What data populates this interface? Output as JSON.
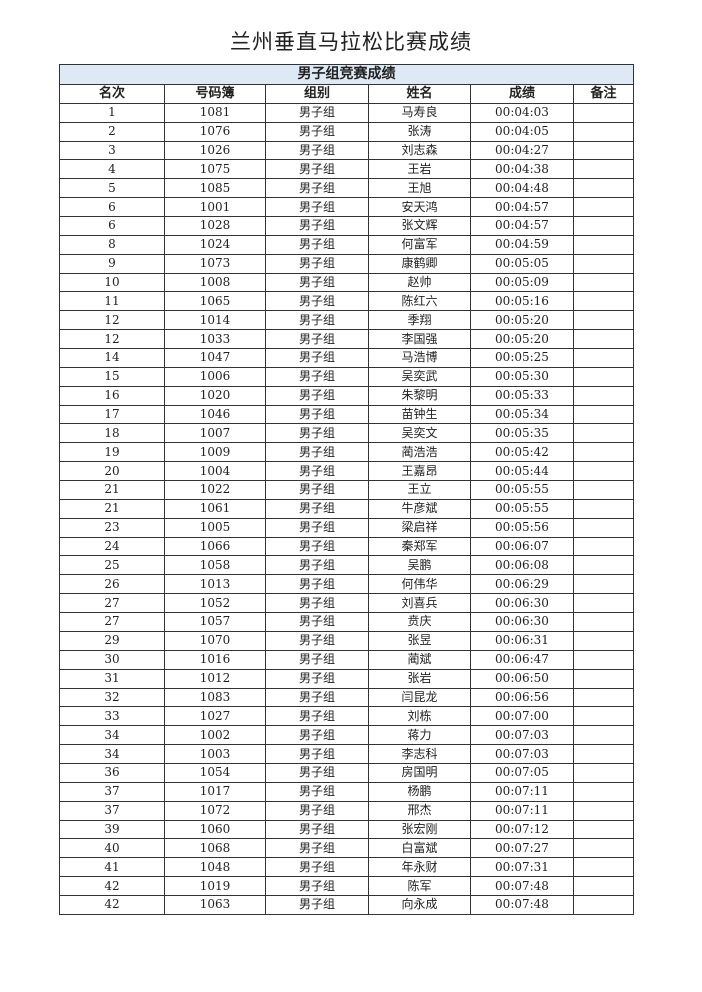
{
  "title": "兰州垂直马拉松比赛成绩",
  "section_title": "男子组竞赛成绩",
  "columns": [
    "名次",
    "号码簿",
    "组别",
    "姓名",
    "成绩",
    "备注"
  ],
  "rows": [
    [
      "1",
      "1081",
      "男子组",
      "马寿良",
      "00:04:03",
      ""
    ],
    [
      "2",
      "1076",
      "男子组",
      "张涛",
      "00:04:05",
      ""
    ],
    [
      "3",
      "1026",
      "男子组",
      "刘志森",
      "00:04:27",
      ""
    ],
    [
      "4",
      "1075",
      "男子组",
      "王岩",
      "00:04:38",
      ""
    ],
    [
      "5",
      "1085",
      "男子组",
      "王旭",
      "00:04:48",
      ""
    ],
    [
      "6",
      "1001",
      "男子组",
      "安天鸿",
      "00:04:57",
      ""
    ],
    [
      "6",
      "1028",
      "男子组",
      "张文辉",
      "00:04:57",
      ""
    ],
    [
      "8",
      "1024",
      "男子组",
      "何富军",
      "00:04:59",
      ""
    ],
    [
      "9",
      "1073",
      "男子组",
      "康鹤卿",
      "00:05:05",
      ""
    ],
    [
      "10",
      "1008",
      "男子组",
      "赵帅",
      "00:05:09",
      ""
    ],
    [
      "11",
      "1065",
      "男子组",
      "陈红六",
      "00:05:16",
      ""
    ],
    [
      "12",
      "1014",
      "男子组",
      "季翔",
      "00:05:20",
      ""
    ],
    [
      "12",
      "1033",
      "男子组",
      "李国强",
      "00:05:20",
      ""
    ],
    [
      "14",
      "1047",
      "男子组",
      "马浩博",
      "00:05:25",
      ""
    ],
    [
      "15",
      "1006",
      "男子组",
      "吴奕武",
      "00:05:30",
      ""
    ],
    [
      "16",
      "1020",
      "男子组",
      "朱黎明",
      "00:05:33",
      ""
    ],
    [
      "17",
      "1046",
      "男子组",
      "苗钟生",
      "00:05:34",
      ""
    ],
    [
      "18",
      "1007",
      "男子组",
      "吴奕文",
      "00:05:35",
      ""
    ],
    [
      "19",
      "1009",
      "男子组",
      "蔺浩浩",
      "00:05:42",
      ""
    ],
    [
      "20",
      "1004",
      "男子组",
      "王嘉昂",
      "00:05:44",
      ""
    ],
    [
      "21",
      "1022",
      "男子组",
      "王立",
      "00:05:55",
      ""
    ],
    [
      "21",
      "1061",
      "男子组",
      "牛彦斌",
      "00:05:55",
      ""
    ],
    [
      "23",
      "1005",
      "男子组",
      "梁启祥",
      "00:05:56",
      ""
    ],
    [
      "24",
      "1066",
      "男子组",
      "秦郑军",
      "00:06:07",
      ""
    ],
    [
      "25",
      "1058",
      "男子组",
      "吴鹏",
      "00:06:08",
      ""
    ],
    [
      "26",
      "1013",
      "男子组",
      "何伟华",
      "00:06:29",
      ""
    ],
    [
      "27",
      "1052",
      "男子组",
      "刘喜兵",
      "00:06:30",
      ""
    ],
    [
      "27",
      "1057",
      "男子组",
      "贲庆",
      "00:06:30",
      ""
    ],
    [
      "29",
      "1070",
      "男子组",
      "张昱",
      "00:06:31",
      ""
    ],
    [
      "30",
      "1016",
      "男子组",
      "蔺斌",
      "00:06:47",
      ""
    ],
    [
      "31",
      "1012",
      "男子组",
      "张岩",
      "00:06:50",
      ""
    ],
    [
      "32",
      "1083",
      "男子组",
      "闫昆龙",
      "00:06:56",
      ""
    ],
    [
      "33",
      "1027",
      "男子组",
      "刘栋",
      "00:07:00",
      ""
    ],
    [
      "34",
      "1002",
      "男子组",
      "蒋力",
      "00:07:03",
      ""
    ],
    [
      "34",
      "1003",
      "男子组",
      "李志科",
      "00:07:03",
      ""
    ],
    [
      "36",
      "1054",
      "男子组",
      "房国明",
      "00:07:05",
      ""
    ],
    [
      "37",
      "1017",
      "男子组",
      "杨鹏",
      "00:07:11",
      ""
    ],
    [
      "37",
      "1072",
      "男子组",
      "邢杰",
      "00:07:11",
      ""
    ],
    [
      "39",
      "1060",
      "男子组",
      "张宏刚",
      "00:07:12",
      ""
    ],
    [
      "40",
      "1068",
      "男子组",
      "白富斌",
      "00:07:27",
      ""
    ],
    [
      "41",
      "1048",
      "男子组",
      "年永财",
      "00:07:31",
      ""
    ],
    [
      "42",
      "1019",
      "男子组",
      "陈军",
      "00:07:48",
      ""
    ],
    [
      "42",
      "1063",
      "男子组",
      "向永成",
      "00:07:48",
      ""
    ]
  ]
}
